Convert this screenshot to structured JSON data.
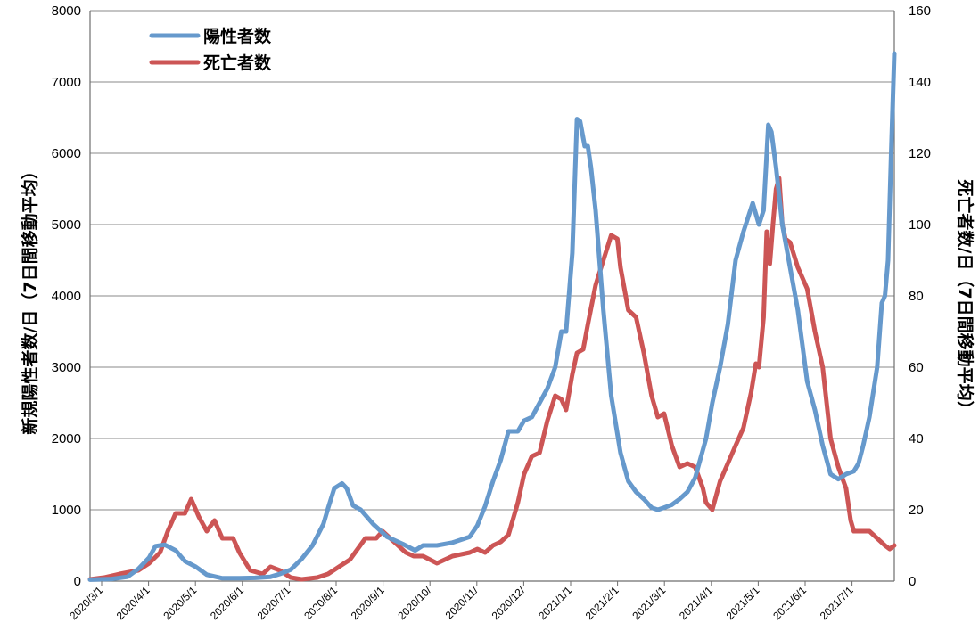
{
  "chart_data": {
    "type": "line",
    "y_left": {
      "label": "新規陽性者数/日（7日間移動平均）",
      "lim": [
        0,
        8000
      ],
      "ticks": [
        "0",
        "1000",
        "2000",
        "3000",
        "4000",
        "5000",
        "6000",
        "7000",
        "8000"
      ]
    },
    "y_right": {
      "label": "死亡者数/日（7日間移動平均）",
      "lim": [
        0,
        160
      ],
      "ticks": [
        "0",
        "20",
        "40",
        "60",
        "80",
        "100",
        "120",
        "140",
        "160"
      ]
    },
    "x_ticks": [
      "2020/3/1",
      "2020/4/1",
      "2020/5/1",
      "2020/6/1",
      "2020/7/1",
      "2020/8/1",
      "2020/9/1",
      "2020/10/",
      "2020/11/",
      "2020/12/",
      "2021/1/1",
      "2021/2/1",
      "2021/3/1",
      "2021/4/1",
      "2021/5/1",
      "2021/6/1",
      "2021/7/1"
    ],
    "grid": true,
    "legend_position": "top-left",
    "series": [
      {
        "name": "陽性者数",
        "axis": "left",
        "color": "#6699cc",
        "points": [
          [
            "2020-03-01",
            20
          ],
          [
            "2020-03-15",
            30
          ],
          [
            "2020-03-25",
            60
          ],
          [
            "2020-04-01",
            170
          ],
          [
            "2020-04-08",
            330
          ],
          [
            "2020-04-12",
            490
          ],
          [
            "2020-04-18",
            510
          ],
          [
            "2020-04-25",
            430
          ],
          [
            "2020-05-01",
            280
          ],
          [
            "2020-05-08",
            200
          ],
          [
            "2020-05-15",
            90
          ],
          [
            "2020-05-25",
            40
          ],
          [
            "2020-06-05",
            40
          ],
          [
            "2020-06-15",
            45
          ],
          [
            "2020-06-25",
            60
          ],
          [
            "2020-07-01",
            100
          ],
          [
            "2020-07-08",
            160
          ],
          [
            "2020-07-15",
            310
          ],
          [
            "2020-07-22",
            500
          ],
          [
            "2020-07-29",
            800
          ],
          [
            "2020-08-01",
            1020
          ],
          [
            "2020-08-05",
            1300
          ],
          [
            "2020-08-10",
            1370
          ],
          [
            "2020-08-13",
            1300
          ],
          [
            "2020-08-17",
            1060
          ],
          [
            "2020-08-22",
            1000
          ],
          [
            "2020-08-30",
            800
          ],
          [
            "2020-09-08",
            620
          ],
          [
            "2020-09-18",
            520
          ],
          [
            "2020-09-26",
            430
          ],
          [
            "2020-10-01",
            500
          ],
          [
            "2020-10-10",
            500
          ],
          [
            "2020-10-20",
            540
          ],
          [
            "2020-10-31",
            620
          ],
          [
            "2020-11-05",
            780
          ],
          [
            "2020-11-10",
            1050
          ],
          [
            "2020-11-15",
            1400
          ],
          [
            "2020-11-20",
            1700
          ],
          [
            "2020-11-25",
            2100
          ],
          [
            "2020-12-01",
            2100
          ],
          [
            "2020-12-05",
            2250
          ],
          [
            "2020-12-10",
            2300
          ],
          [
            "2020-12-15",
            2500
          ],
          [
            "2020-12-20",
            2700
          ],
          [
            "2020-12-25",
            3000
          ],
          [
            "2020-12-29",
            3500
          ],
          [
            "2021-01-01",
            3500
          ],
          [
            "2021-01-05",
            4600
          ],
          [
            "2021-01-08",
            6480
          ],
          [
            "2021-01-10",
            6450
          ],
          [
            "2021-01-13",
            6100
          ],
          [
            "2021-01-15",
            6100
          ],
          [
            "2021-01-17",
            5800
          ],
          [
            "2021-01-20",
            5200
          ],
          [
            "2021-01-25",
            3800
          ],
          [
            "2021-01-30",
            2600
          ],
          [
            "2021-02-05",
            1800
          ],
          [
            "2021-02-10",
            1400
          ],
          [
            "2021-02-15",
            1250
          ],
          [
            "2021-02-20",
            1150
          ],
          [
            "2021-02-25",
            1030
          ],
          [
            "2021-03-01",
            1000
          ],
          [
            "2021-03-05",
            1030
          ],
          [
            "2021-03-10",
            1070
          ],
          [
            "2021-03-15",
            1150
          ],
          [
            "2021-03-20",
            1250
          ],
          [
            "2021-03-25",
            1450
          ],
          [
            "2021-04-01",
            2000
          ],
          [
            "2021-04-05",
            2500
          ],
          [
            "2021-04-10",
            3000
          ],
          [
            "2021-04-15",
            3600
          ],
          [
            "2021-04-20",
            4500
          ],
          [
            "2021-04-25",
            4900
          ],
          [
            "2021-04-28",
            5100
          ],
          [
            "2021-05-01",
            5300
          ],
          [
            "2021-05-05",
            5000
          ],
          [
            "2021-05-08",
            5200
          ],
          [
            "2021-05-11",
            6400
          ],
          [
            "2021-05-13",
            6300
          ],
          [
            "2021-05-16",
            5800
          ],
          [
            "2021-05-20",
            5000
          ],
          [
            "2021-05-25",
            4400
          ],
          [
            "2021-05-30",
            3800
          ],
          [
            "2021-06-05",
            2800
          ],
          [
            "2021-06-10",
            2400
          ],
          [
            "2021-06-15",
            1900
          ],
          [
            "2021-06-20",
            1500
          ],
          [
            "2021-06-25",
            1430
          ],
          [
            "2021-06-30",
            1500
          ],
          [
            "2021-07-05",
            1540
          ],
          [
            "2021-07-08",
            1650
          ],
          [
            "2021-07-11",
            1900
          ],
          [
            "2021-07-15",
            2300
          ],
          [
            "2021-07-20",
            3000
          ],
          [
            "2021-07-23",
            3900
          ],
          [
            "2021-07-25",
            4000
          ],
          [
            "2021-07-27",
            4500
          ],
          [
            "2021-07-29",
            6000
          ],
          [
            "2021-07-31",
            7400
          ]
        ]
      },
      {
        "name": "死亡者数",
        "axis": "right",
        "color": "#cc5555",
        "points": [
          [
            "2020-03-01",
            0.5
          ],
          [
            "2020-03-10",
            1
          ],
          [
            "2020-03-20",
            2
          ],
          [
            "2020-04-01",
            3
          ],
          [
            "2020-04-08",
            5
          ],
          [
            "2020-04-15",
            8
          ],
          [
            "2020-04-20",
            14
          ],
          [
            "2020-04-25",
            19
          ],
          [
            "2020-05-01",
            19
          ],
          [
            "2020-05-05",
            23
          ],
          [
            "2020-05-10",
            18
          ],
          [
            "2020-05-15",
            14
          ],
          [
            "2020-05-20",
            17
          ],
          [
            "2020-05-25",
            12
          ],
          [
            "2020-06-01",
            12
          ],
          [
            "2020-06-05",
            8
          ],
          [
            "2020-06-12",
            3
          ],
          [
            "2020-06-20",
            2
          ],
          [
            "2020-06-25",
            4
          ],
          [
            "2020-07-01",
            3
          ],
          [
            "2020-07-08",
            1
          ],
          [
            "2020-07-15",
            0.5
          ],
          [
            "2020-07-25",
            1
          ],
          [
            "2020-08-01",
            2
          ],
          [
            "2020-08-08",
            4
          ],
          [
            "2020-08-15",
            6
          ],
          [
            "2020-08-20",
            9
          ],
          [
            "2020-08-25",
            12
          ],
          [
            "2020-09-01",
            12
          ],
          [
            "2020-09-05",
            14
          ],
          [
            "2020-09-10",
            12
          ],
          [
            "2020-09-15",
            10
          ],
          [
            "2020-09-20",
            8
          ],
          [
            "2020-09-25",
            7
          ],
          [
            "2020-10-01",
            7
          ],
          [
            "2020-10-10",
            5
          ],
          [
            "2020-10-20",
            7
          ],
          [
            "2020-10-31",
            8
          ],
          [
            "2020-11-05",
            9
          ],
          [
            "2020-11-10",
            8
          ],
          [
            "2020-11-15",
            10
          ],
          [
            "2020-11-20",
            11
          ],
          [
            "2020-11-25",
            13
          ],
          [
            "2020-12-01",
            22
          ],
          [
            "2020-12-05",
            30
          ],
          [
            "2020-12-10",
            35
          ],
          [
            "2020-12-15",
            36
          ],
          [
            "2020-12-20",
            45
          ],
          [
            "2020-12-25",
            52
          ],
          [
            "2020-12-29",
            51
          ],
          [
            "2021-01-01",
            48
          ],
          [
            "2021-01-05",
            58
          ],
          [
            "2021-01-08",
            64
          ],
          [
            "2021-01-12",
            65
          ],
          [
            "2021-01-15",
            72
          ],
          [
            "2021-01-20",
            83
          ],
          [
            "2021-01-25",
            90
          ],
          [
            "2021-01-30",
            97
          ],
          [
            "2021-02-03",
            96
          ],
          [
            "2021-02-05",
            88
          ],
          [
            "2021-02-10",
            76
          ],
          [
            "2021-02-15",
            74
          ],
          [
            "2021-02-20",
            64
          ],
          [
            "2021-02-25",
            52
          ],
          [
            "2021-03-01",
            46
          ],
          [
            "2021-03-05",
            47
          ],
          [
            "2021-03-10",
            38
          ],
          [
            "2021-03-15",
            32
          ],
          [
            "2021-03-20",
            33
          ],
          [
            "2021-03-25",
            32
          ],
          [
            "2021-03-30",
            26
          ],
          [
            "2021-04-01",
            22
          ],
          [
            "2021-04-05",
            20
          ],
          [
            "2021-04-10",
            28
          ],
          [
            "2021-04-15",
            33
          ],
          [
            "2021-04-20",
            38
          ],
          [
            "2021-04-25",
            43
          ],
          [
            "2021-04-30",
            53
          ],
          [
            "2021-05-03",
            61
          ],
          [
            "2021-05-05",
            60
          ],
          [
            "2021-05-08",
            74
          ],
          [
            "2021-05-10",
            98
          ],
          [
            "2021-05-12",
            89
          ],
          [
            "2021-05-14",
            100
          ],
          [
            "2021-05-16",
            110
          ],
          [
            "2021-05-18",
            113
          ],
          [
            "2021-05-20",
            100
          ],
          [
            "2021-05-22",
            96
          ],
          [
            "2021-05-25",
            95
          ],
          [
            "2021-05-30",
            88
          ],
          [
            "2021-06-05",
            82
          ],
          [
            "2021-06-10",
            70
          ],
          [
            "2021-06-15",
            60
          ],
          [
            "2021-06-20",
            40
          ],
          [
            "2021-06-25",
            32
          ],
          [
            "2021-06-30",
            26
          ],
          [
            "2021-07-03",
            17
          ],
          [
            "2021-07-05",
            14
          ],
          [
            "2021-07-10",
            14
          ],
          [
            "2021-07-15",
            14
          ],
          [
            "2021-07-20",
            12
          ],
          [
            "2021-07-25",
            10
          ],
          [
            "2021-07-28",
            9
          ],
          [
            "2021-07-31",
            10
          ]
        ]
      }
    ]
  }
}
